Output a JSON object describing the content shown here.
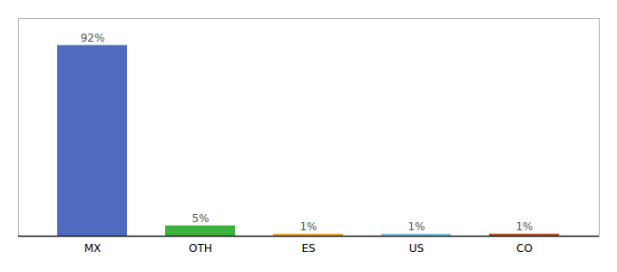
{
  "chart_data": {
    "type": "bar",
    "categories": [
      "MX",
      "OTH",
      "ES",
      "US",
      "CO"
    ],
    "values": [
      92,
      5,
      1,
      1,
      1
    ],
    "colors": [
      "#4f6bbf",
      "#3db33d",
      "#f0a830",
      "#85cce8",
      "#c0522a"
    ],
    "ylim": [
      0,
      105
    ],
    "data_labels": true,
    "value_labels": [
      "92%",
      "5%",
      "1%",
      "1%",
      "1%"
    ],
    "tick_labels": "x",
    "grid": false
  }
}
